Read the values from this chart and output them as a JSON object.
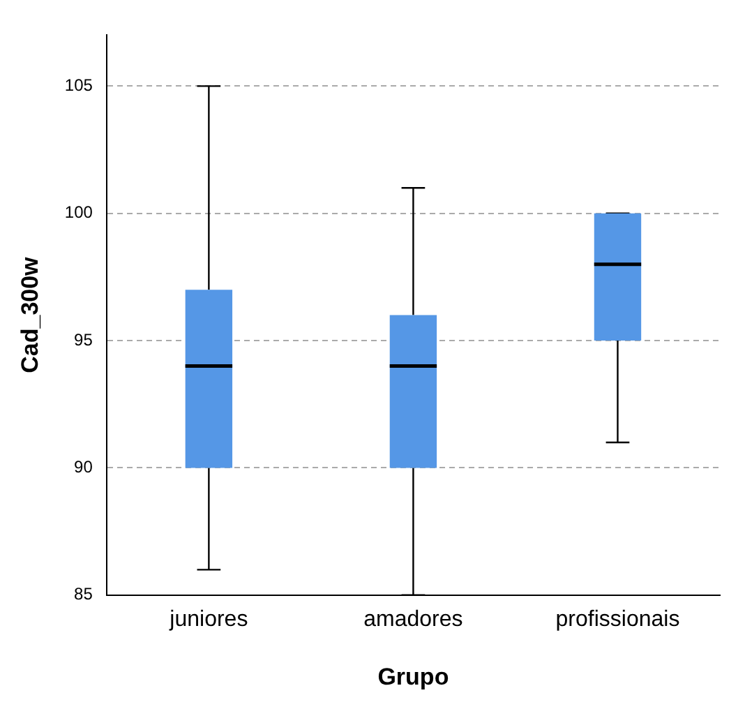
{
  "chart_data": {
    "type": "box",
    "xlabel": "Grupo",
    "ylabel": "Cad_300w",
    "categories": [
      "juniores",
      "amadores",
      "profissionais"
    ],
    "boxes": [
      {
        "low": 86,
        "q1": 90,
        "median": 94,
        "q3": 97,
        "high": 105
      },
      {
        "low": 85,
        "q1": 90,
        "median": 94,
        "q3": 96,
        "high": 101
      },
      {
        "low": 91,
        "q1": 95,
        "median": 98,
        "q3": 100,
        "high": 100
      }
    ],
    "color": "#5597e6",
    "ylim": [
      85,
      107
    ],
    "yticks": [
      85,
      90,
      95,
      100,
      105
    ],
    "grid": "y"
  }
}
